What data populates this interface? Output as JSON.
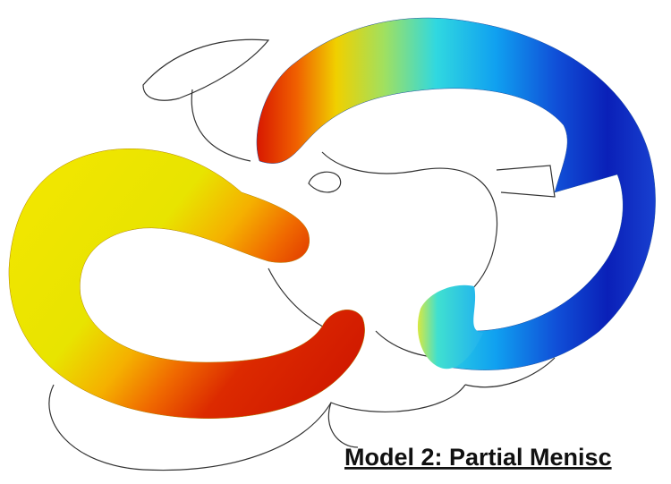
{
  "caption": "Model 2: Partial Menisc"
}
